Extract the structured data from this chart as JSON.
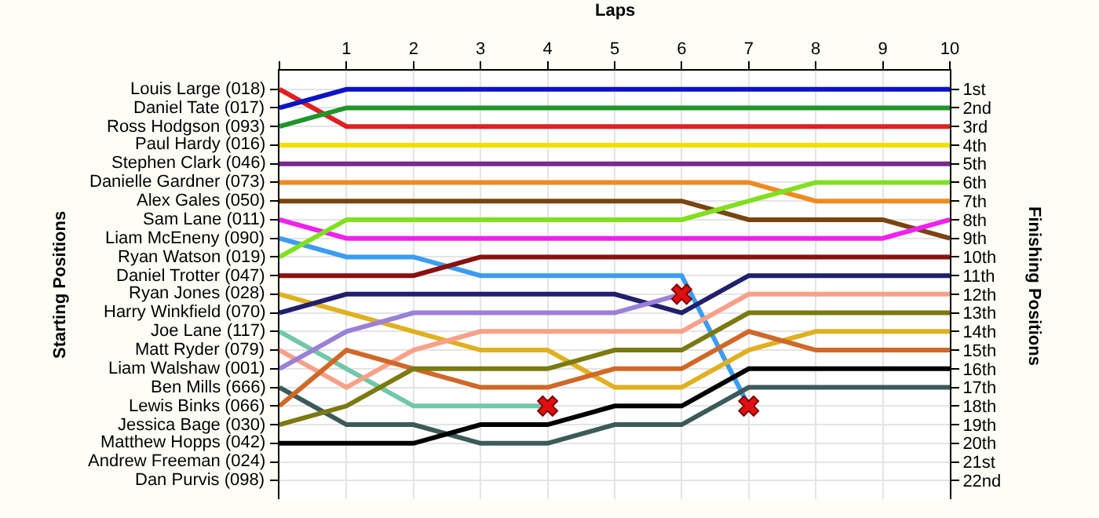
{
  "chart_data": {
    "type": "line",
    "xlabel": "Laps",
    "ylabel": "Finishing Positions",
    "annotations": [
      "Starting Positions",
      "Louis Large (018)",
      "Daniel Tate (017)",
      "Ross Hodgson (093)",
      "Paul Hardy (016)",
      "Stephen Clark (046)",
      "Danielle Gardner (073)",
      "Alex Gales (050)",
      "Sam Lane (011)",
      "Liam McEneny (090)",
      "Ryan Watson (019)",
      "Daniel Trotter (047)",
      "Ryan Jones (028)",
      "Harry Winkfield (070)",
      "Joe Lane (117)",
      "Matt Ryder (079)",
      "Liam Walshaw (001)",
      "Ben Mills (666)",
      "Lewis Binks (066)",
      "Jessica Bage (030)",
      "Matthew Hopps (042)",
      "Andrew Freeman (024)",
      "Dan Purvis (098)"
    ],
    "x": [
      0,
      1,
      2,
      3,
      4,
      5,
      6,
      7,
      8,
      9,
      10
    ],
    "xlim": [
      0,
      10
    ],
    "xticks": [
      {
        "value": 0,
        "label": null
      },
      1,
      2,
      3,
      4,
      5,
      6,
      7,
      8,
      9,
      10
    ],
    "ylim": [
      23,
      0
    ],
    "yticks": [
      {
        "value": 1,
        "label": "1st"
      },
      {
        "value": 2,
        "label": "2nd"
      },
      {
        "value": 3,
        "label": "3rd"
      },
      {
        "value": 4,
        "label": "4th"
      },
      {
        "value": 5,
        "label": "5th"
      },
      {
        "value": 6,
        "label": "6th"
      },
      {
        "value": 7,
        "label": "7th"
      },
      {
        "value": 8,
        "label": "8th"
      },
      {
        "value": 9,
        "label": "9th"
      },
      {
        "value": 10,
        "label": "10th"
      },
      {
        "value": 11,
        "label": "11th"
      },
      {
        "value": 12,
        "label": "12th"
      },
      {
        "value": 13,
        "label": "13th"
      },
      {
        "value": 14,
        "label": "14th"
      },
      {
        "value": 15,
        "label": "15th"
      },
      {
        "value": 16,
        "label": "16th"
      },
      {
        "value": 17,
        "label": "17th"
      },
      {
        "value": 18,
        "label": "18th"
      },
      {
        "value": 19,
        "label": "19th"
      },
      {
        "value": 20,
        "label": "20th"
      },
      {
        "value": 21,
        "label": "21st"
      },
      {
        "value": 22,
        "label": "22nd"
      }
    ],
    "grid": true,
    "marker": "none",
    "line_style": "solid",
    "series": [
      {
        "color": "#e02020",
        "values": [
          1,
          3,
          3,
          3,
          3,
          3,
          3,
          3,
          3,
          3,
          3
        ]
      },
      {
        "color": "#0a14c8",
        "values": [
          2,
          1,
          1,
          1,
          1,
          1,
          1,
          1,
          1,
          1,
          1
        ]
      },
      {
        "color": "#1e9628",
        "values": [
          3,
          2,
          2,
          2,
          2,
          2,
          2,
          2,
          2,
          2,
          2
        ]
      },
      {
        "color": "#f0e000",
        "values": [
          4,
          4,
          4,
          4,
          4,
          4,
          4,
          4,
          4,
          4,
          4
        ]
      },
      {
        "color": "#7a2a8a",
        "values": [
          5,
          5,
          5,
          5,
          5,
          5,
          5,
          5,
          5,
          5,
          5
        ]
      },
      {
        "color": "#f08a20",
        "values": [
          6,
          6,
          6,
          6,
          6,
          6,
          6,
          6,
          7,
          7,
          7
        ]
      },
      {
        "color": "#7a4410",
        "values": [
          7,
          7,
          7,
          7,
          7,
          7,
          7,
          8,
          8,
          8,
          9
        ]
      },
      {
        "color": "#f020f0",
        "values": [
          8,
          9,
          9,
          9,
          9,
          9,
          9,
          9,
          9,
          9,
          8
        ]
      },
      {
        "color": "#3c9cf0",
        "values": [
          9,
          10,
          10,
          11,
          11,
          11,
          11,
          18,
          null,
          null,
          null
        ]
      },
      {
        "color": "#80e020",
        "values": [
          10,
          8,
          8,
          8,
          8,
          8,
          8,
          7,
          6,
          6,
          6
        ]
      },
      {
        "color": "#8a1010",
        "values": [
          11,
          11,
          11,
          10,
          10,
          10,
          10,
          10,
          10,
          10,
          10
        ]
      },
      {
        "color": "#e0b020",
        "values": [
          12,
          13,
          14,
          15,
          15,
          17,
          17,
          15,
          14,
          14,
          14
        ]
      },
      {
        "color": "#20206e",
        "values": [
          13,
          12,
          12,
          12,
          12,
          12,
          13,
          11,
          11,
          11,
          11
        ]
      },
      {
        "color": "#70c8a8",
        "values": [
          14,
          16,
          18,
          18,
          18,
          null,
          null,
          null,
          null,
          null,
          null
        ]
      },
      {
        "color": "#f8a088",
        "values": [
          15,
          17,
          15,
          14,
          14,
          14,
          14,
          12,
          12,
          12,
          12
        ]
      },
      {
        "color": "#9a80d8",
        "values": [
          16,
          14,
          13,
          13,
          13,
          13,
          12,
          null,
          null,
          null,
          null
        ]
      },
      {
        "color": "#3c5a5a",
        "values": [
          17,
          19,
          19,
          20,
          20,
          19,
          19,
          17,
          17,
          17,
          17
        ]
      },
      {
        "color": "#d06828",
        "values": [
          18,
          15,
          16,
          17,
          17,
          16,
          16,
          14,
          15,
          15,
          15
        ]
      },
      {
        "color": "#7a7a10",
        "values": [
          19,
          18,
          16,
          16,
          16,
          15,
          15,
          13,
          13,
          13,
          13
        ]
      },
      {
        "color": "#000000",
        "values": [
          20,
          20,
          20,
          19,
          19,
          18,
          18,
          16,
          16,
          16,
          16
        ]
      },
      {
        "type": "scatter",
        "marker": "cross",
        "color": "#e01010",
        "x": [
          4,
          6,
          7
        ],
        "values": [
          18,
          12,
          18
        ]
      }
    ]
  }
}
